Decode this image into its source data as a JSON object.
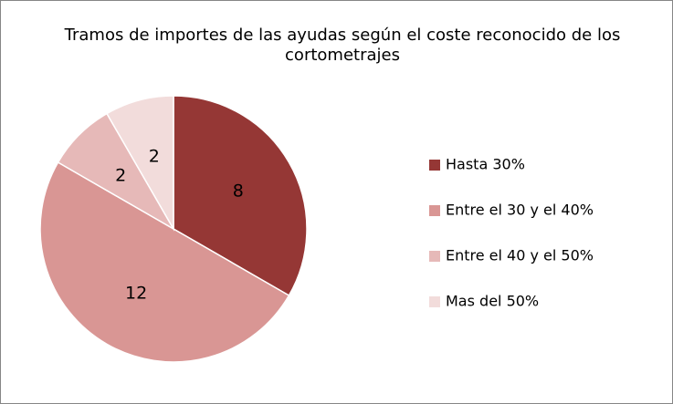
{
  "chart_data": {
    "type": "pie",
    "title": "Tramos de importes de las ayudas según el coste reconocido de los cortometrajes",
    "categories": [
      "Hasta 30%",
      "Entre el 30 y el 40%",
      "Entre el 40 y el 50%",
      "Mas del 50%"
    ],
    "values": [
      8,
      12,
      2,
      2
    ],
    "colors": [
      "#953735",
      "#d99694",
      "#e6b9b8",
      "#f2dcdb"
    ],
    "legend": "right"
  }
}
